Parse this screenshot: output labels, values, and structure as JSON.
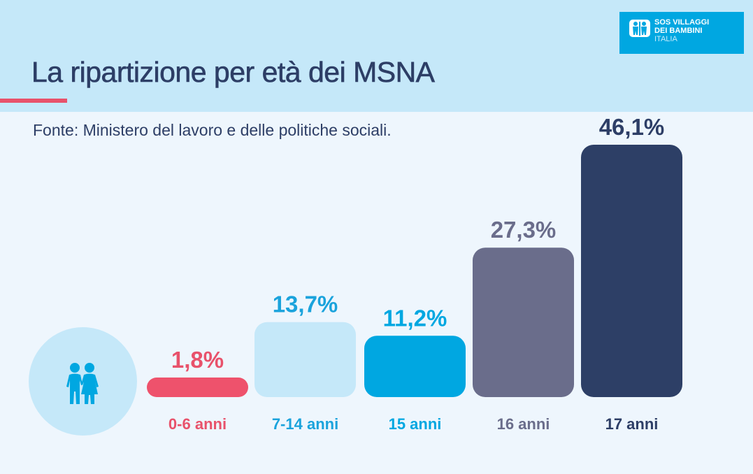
{
  "header": {
    "title": "La ripartizione per età dei MSNA",
    "logo": {
      "line1": "SOS VILLAGGI",
      "line2": "DEI BAMBINI",
      "line3": "ITALIA"
    }
  },
  "source": "Fonte: Ministero del lavoro e delle politiche sociali.",
  "icon": "children-holding-hands-icon",
  "colors": {
    "header_bg": "#c5e8f9",
    "page_bg": "#eef6fd",
    "title": "#2d3e66",
    "accent": "#e8526b",
    "brand": "#00a7e1"
  },
  "chart_data": {
    "type": "bar",
    "title": "La ripartizione per età dei MSNA",
    "xlabel": "",
    "ylabel": "",
    "ylim": [
      0,
      46.1
    ],
    "grid": false,
    "categories": [
      "0-6 anni",
      "7-14 anni",
      "15 anni",
      "16 anni",
      "17 anni"
    ],
    "values": [
      1.8,
      13.7,
      11.2,
      27.3,
      46.1
    ],
    "value_labels": [
      "1,8%",
      "13,7%",
      "11,2%",
      "27,3%",
      "46,1%"
    ],
    "bar_colors": [
      "#ee526c",
      "#c5e8f9",
      "#00a7e1",
      "#6a6d8b",
      "#2d3f66"
    ],
    "label_colors": [
      "#e8526b",
      "#1aa3dc",
      "#00a7e1",
      "#6a6d8b",
      "#2d3e66"
    ],
    "unit": "%"
  }
}
